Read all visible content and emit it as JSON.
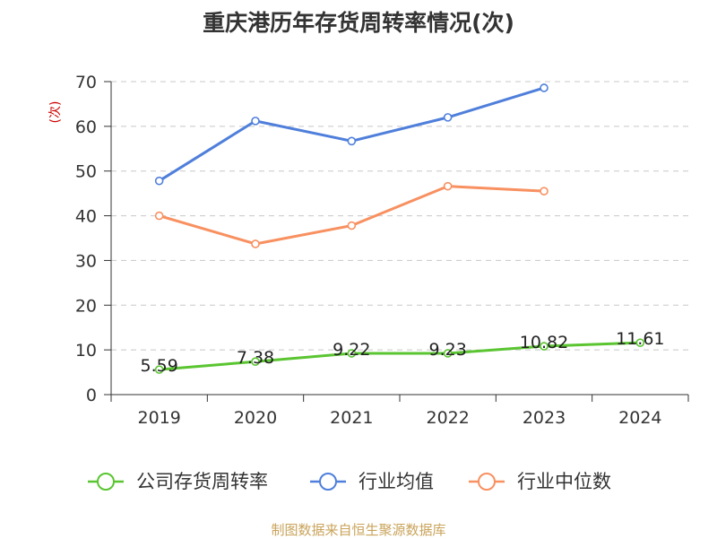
{
  "chart_data": {
    "type": "line",
    "title": "重庆港历年存货周转率情况(次)",
    "ylabel": "(次)",
    "categories": [
      "2019",
      "2020",
      "2021",
      "2022",
      "2023",
      "2024"
    ],
    "ylim": [
      0,
      70
    ],
    "yticks": [
      "0",
      "10",
      "20",
      "30",
      "40",
      "50",
      "60",
      "70"
    ],
    "grid": true,
    "legend_position": "bottom-center",
    "series": [
      {
        "name": "公司存货周转率",
        "color": "#5ac531",
        "values": [
          5.59,
          7.38,
          9.22,
          9.23,
          10.82,
          11.61
        ],
        "labels": [
          "5.59",
          "7.38",
          "9.22",
          "9.23",
          "10.82",
          "11.61"
        ]
      },
      {
        "name": "行业均值",
        "color": "#4f7fdb",
        "values": [
          47.8,
          61.2,
          56.7,
          62.0,
          68.6,
          null
        ]
      },
      {
        "name": "行业中位数",
        "color": "#f89060",
        "values": [
          40.0,
          33.7,
          37.8,
          46.6,
          45.5,
          null
        ]
      }
    ]
  },
  "source": "制图数据来自恒生聚源数据库"
}
